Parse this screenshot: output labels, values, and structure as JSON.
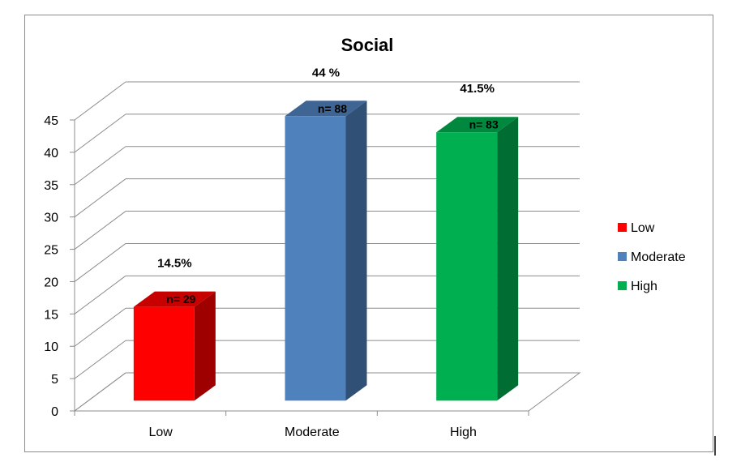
{
  "chart_data": {
    "type": "bar",
    "title": "Social",
    "xlabel": "",
    "ylabel": "",
    "categories": [
      "Low",
      "Moderate",
      "High"
    ],
    "values": [
      14.5,
      44,
      41.5
    ],
    "value_labels": [
      "14.5%",
      "44 %",
      "41.5%"
    ],
    "count_labels": [
      "n= 29",
      "n= 88",
      "n= 83"
    ],
    "colors": [
      "#ff0000",
      "#4f81bd",
      "#00b050"
    ],
    "ylim": [
      0,
      45
    ],
    "yticks": [
      0,
      5,
      10,
      15,
      20,
      25,
      30,
      35,
      40,
      45
    ],
    "grid": true,
    "style": "3d-column",
    "legend": {
      "position": "right",
      "entries": [
        "Low",
        "Moderate",
        "High"
      ]
    }
  }
}
